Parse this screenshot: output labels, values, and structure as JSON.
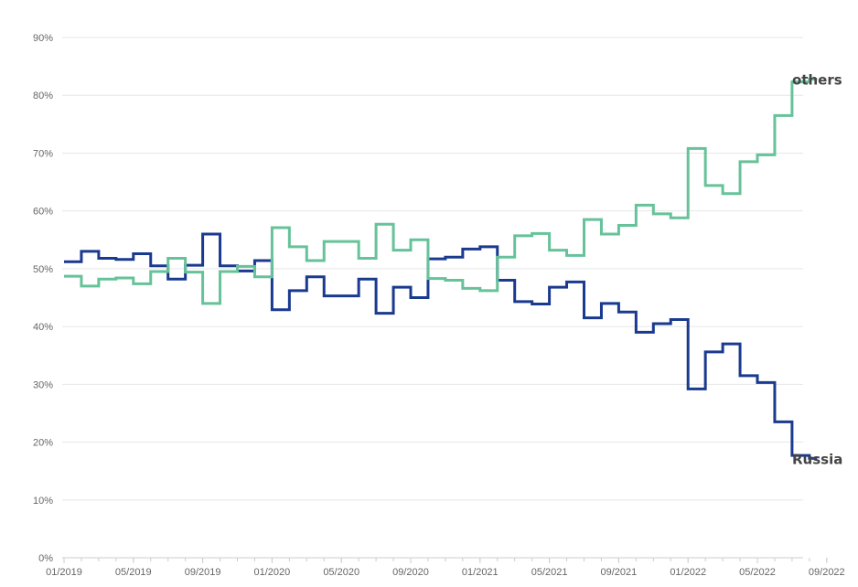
{
  "chart_data": {
    "type": "line",
    "step": true,
    "x": [
      "01/2019",
      "02/2019",
      "03/2019",
      "04/2019",
      "05/2019",
      "06/2019",
      "07/2019",
      "08/2019",
      "09/2019",
      "10/2019",
      "11/2019",
      "12/2019",
      "01/2020",
      "02/2020",
      "03/2020",
      "04/2020",
      "05/2020",
      "06/2020",
      "07/2020",
      "08/2020",
      "09/2020",
      "10/2020",
      "11/2020",
      "12/2020",
      "01/2021",
      "02/2021",
      "03/2021",
      "04/2021",
      "05/2021",
      "06/2021",
      "07/2021",
      "08/2021",
      "09/2021",
      "10/2021",
      "11/2021",
      "12/2021",
      "01/2022",
      "02/2022",
      "03/2022",
      "04/2022",
      "05/2022",
      "06/2022",
      "07/2022",
      "08/2022"
    ],
    "series": [
      {
        "name": "Russia",
        "color": "#1a3a8f",
        "values": [
          51.2,
          53.0,
          51.8,
          51.6,
          52.6,
          50.5,
          48.2,
          50.6,
          56.0,
          50.5,
          49.6,
          51.4,
          42.9,
          46.2,
          48.6,
          45.3,
          45.3,
          48.2,
          42.3,
          46.8,
          45.0,
          51.7,
          52.0,
          53.4,
          53.8,
          48.0,
          44.3,
          43.9,
          46.8,
          47.7,
          41.5,
          44.0,
          42.5,
          39.0,
          40.5,
          41.2,
          29.2,
          35.6,
          37.0,
          31.5,
          30.3,
          23.5,
          17.7,
          17.2
        ]
      },
      {
        "name": "others",
        "color": "#66c299",
        "values": [
          48.7,
          47.0,
          48.2,
          48.4,
          47.4,
          49.5,
          51.8,
          49.4,
          44.0,
          49.5,
          50.4,
          48.6,
          57.1,
          53.8,
          51.4,
          54.7,
          54.7,
          51.8,
          57.7,
          53.2,
          55.0,
          48.3,
          48.0,
          46.6,
          46.2,
          52.0,
          55.7,
          56.1,
          53.2,
          52.3,
          58.5,
          56.0,
          57.5,
          61.0,
          59.5,
          58.8,
          70.8,
          64.4,
          63.0,
          68.5,
          69.7,
          76.5,
          82.3,
          82.8
        ]
      }
    ],
    "x_tick_labels": [
      "01/2019",
      "05/2019",
      "09/2019",
      "01/2020",
      "05/2020",
      "09/2020",
      "01/2021",
      "05/2021",
      "09/2021",
      "01/2022",
      "05/2022",
      "09/2022"
    ],
    "y_tick_labels": [
      "0%",
      "10%",
      "20%",
      "30%",
      "40%",
      "50%",
      "60%",
      "70%",
      "80%",
      "90%"
    ],
    "ylim": [
      0,
      90
    ],
    "grid": true,
    "legend": "direct labels at line ends"
  }
}
